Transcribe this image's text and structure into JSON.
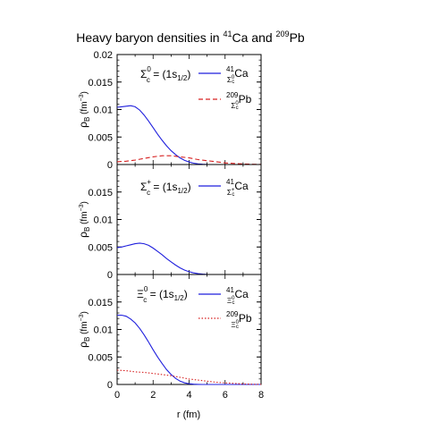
{
  "title": {
    "main": "Heavy baryon densities in ",
    "ca_sup": "41",
    "ca": "Ca and ",
    "pb_sup": "209",
    "pb": "Pb"
  },
  "xlabel": "r (fm)",
  "ylabel": {
    "rho": "ρ",
    "sub": "B",
    "unit": " (fm",
    "exp": "−3",
    "close": ")"
  },
  "colors": {
    "ca": "#1f1fdd",
    "pb_dashed": "#d62020",
    "pb_dotted": "#d62020",
    "axis": "#000000"
  },
  "chart_data": [
    {
      "type": "line",
      "annotation": {
        "sym": "Σ",
        "sup": "0",
        "sub": "c",
        "state": " = (1s",
        "state_sub": "1/2",
        "state_close": ")"
      },
      "xlim": [
        0,
        8
      ],
      "ylim": [
        0,
        0.02
      ],
      "y_ticks": [
        {
          "v": 0,
          "label": "0"
        },
        {
          "v": 0.005,
          "label": "0.005"
        },
        {
          "v": 0.01,
          "label": "0.01"
        },
        {
          "v": 0.015,
          "label": "0.015"
        },
        {
          "v": 0.02,
          "label": "0.02"
        }
      ],
      "x_ticks": [],
      "series": [
        {
          "legend_sup": "41",
          "legend_sym_sub": "Σ",
          "legend_sym_sub_sup": "0",
          "legend_sym_sub_sub": "c",
          "legend_nuc": "Ca",
          "style": "solid",
          "color": "#1f1fdd",
          "x": [
            0,
            0.25,
            0.5,
            0.75,
            1.0,
            1.25,
            1.5,
            1.75,
            2.0,
            2.25,
            2.5,
            2.75,
            3.0,
            3.25,
            3.5,
            3.75,
            4.0,
            4.25,
            4.5,
            4.75,
            5.0,
            5.5,
            6.0,
            7.0,
            8.0
          ],
          "y": [
            0.0104,
            0.0105,
            0.0106,
            0.0107,
            0.0105,
            0.0099,
            0.009,
            0.0079,
            0.0067,
            0.0055,
            0.0044,
            0.0034,
            0.0025,
            0.0018,
            0.0012,
            0.00075,
            0.00045,
            0.00025,
            0.00012,
            5e-05,
            2e-05,
            0,
            0,
            0,
            0
          ]
        },
        {
          "legend_sup": "209",
          "legend_sym_sub": "Σ",
          "legend_sym_sub_sup": "0",
          "legend_sym_sub_sub": "c",
          "legend_nuc": "Pb",
          "style": "dashed",
          "color": "#d62020",
          "x": [
            0,
            0.5,
            1.0,
            1.5,
            2.0,
            2.5,
            3.0,
            3.5,
            4.0,
            4.5,
            5.0,
            5.5,
            6.0,
            6.5,
            7.0,
            7.5,
            8.0
          ],
          "y": [
            0.0005,
            0.0006,
            0.0008,
            0.0011,
            0.0014,
            0.0016,
            0.0016,
            0.0014,
            0.0012,
            0.0009,
            0.0007,
            0.0005,
            0.0003,
            0.0002,
            0.0001,
            5e-05,
            2e-05
          ]
        }
      ]
    },
    {
      "type": "line",
      "annotation": {
        "sym": "Σ",
        "sup": "+",
        "sub": "c",
        "state": " = (1s",
        "state_sub": "1/2",
        "state_close": ")"
      },
      "xlim": [
        0,
        8
      ],
      "ylim": [
        0,
        0.02
      ],
      "y_ticks": [
        {
          "v": 0,
          "label": "0"
        },
        {
          "v": 0.005,
          "label": "0.005"
        },
        {
          "v": 0.01,
          "label": "0.01"
        },
        {
          "v": 0.015,
          "label": "0.015"
        }
      ],
      "x_ticks": [],
      "series": [
        {
          "legend_sup": "41",
          "legend_sym_sub": "Σ",
          "legend_sym_sub_sup": "+",
          "legend_sym_sub_sub": "c",
          "legend_nuc": "Ca",
          "style": "solid",
          "color": "#1f1fdd",
          "x": [
            0,
            0.25,
            0.5,
            0.75,
            1.0,
            1.25,
            1.5,
            1.75,
            2.0,
            2.25,
            2.5,
            2.75,
            3.0,
            3.25,
            3.5,
            3.75,
            4.0,
            4.25,
            4.5,
            4.75,
            5.0,
            5.5,
            6.0,
            7.0,
            8.0
          ],
          "y": [
            0.0049,
            0.005,
            0.0052,
            0.0054,
            0.0056,
            0.0057,
            0.0056,
            0.0053,
            0.0048,
            0.0042,
            0.0036,
            0.0029,
            0.0023,
            0.0017,
            0.0012,
            0.0008,
            0.0005,
            0.0003,
            0.00015,
            6e-05,
            2e-05,
            0,
            0,
            0,
            0
          ]
        }
      ]
    },
    {
      "type": "line",
      "annotation": {
        "sym": "Ξ",
        "sup": "0",
        "sub": "c",
        "state": " = (1s",
        "state_sub": "1/2",
        "state_close": ")"
      },
      "xlim": [
        0,
        8
      ],
      "ylim": [
        0,
        0.02
      ],
      "y_ticks": [
        {
          "v": 0,
          "label": "0"
        },
        {
          "v": 0.005,
          "label": "0.005"
        },
        {
          "v": 0.01,
          "label": "0.01"
        },
        {
          "v": 0.015,
          "label": "0.015"
        }
      ],
      "x_ticks": [
        {
          "v": 0,
          "label": "0"
        },
        {
          "v": 2,
          "label": "2"
        },
        {
          "v": 4,
          "label": "4"
        },
        {
          "v": 6,
          "label": "6"
        },
        {
          "v": 8,
          "label": "8"
        }
      ],
      "series": [
        {
          "legend_sup": "41",
          "legend_sym_sub": "Ξ",
          "legend_sym_sub_sup": "0",
          "legend_sym_sub_sub": "c",
          "legend_nuc": "Ca",
          "style": "solid",
          "color": "#1f1fdd",
          "x": [
            0,
            0.25,
            0.5,
            0.75,
            1.0,
            1.25,
            1.5,
            1.75,
            2.0,
            2.25,
            2.5,
            2.75,
            3.0,
            3.25,
            3.5,
            3.75,
            4.0,
            4.25,
            4.5,
            4.75,
            5.0,
            5.5,
            6.0,
            7.0,
            8.0
          ],
          "y": [
            0.0126,
            0.0126,
            0.0124,
            0.0119,
            0.0112,
            0.0102,
            0.009,
            0.0077,
            0.0063,
            0.005,
            0.0038,
            0.0027,
            0.0018,
            0.0011,
            0.0006,
            0.0003,
            0.00013,
            5e-05,
            2e-05,
            0,
            0,
            0,
            0,
            0,
            0
          ]
        },
        {
          "legend_sup": "209",
          "legend_sym_sub": "Ξ",
          "legend_sym_sub_sup": "0",
          "legend_sym_sub_sub": "c",
          "legend_nuc": "Pb",
          "style": "dotted",
          "color": "#d62020",
          "x": [
            0,
            0.5,
            1.0,
            1.5,
            2.0,
            2.5,
            3.0,
            3.5,
            4.0,
            4.5,
            5.0,
            5.5,
            6.0,
            6.5,
            7.0,
            7.5,
            8.0
          ],
          "y": [
            0.0026,
            0.0025,
            0.0023,
            0.0022,
            0.002,
            0.0018,
            0.0016,
            0.0013,
            0.001,
            0.0008,
            0.0006,
            0.0004,
            0.0003,
            0.0002,
            0.0001,
            5e-05,
            2e-05
          ]
        }
      ]
    }
  ]
}
